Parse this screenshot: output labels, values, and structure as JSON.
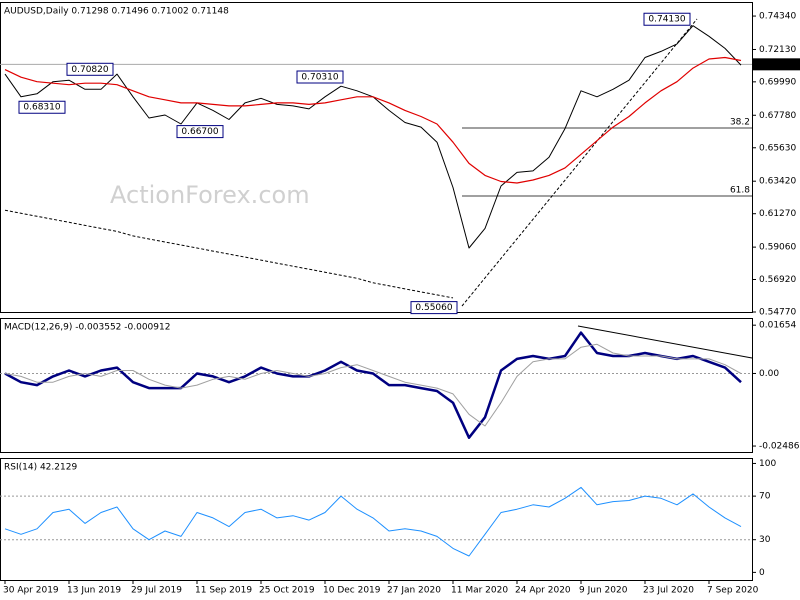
{
  "watermark": "ActionForex.com",
  "chart_data": [
    {
      "type": "line",
      "title": "AUDUSD,Daily  0.71298 0.71496 0.71002 0.71148",
      "ylim": [
        0.5477,
        0.7527
      ],
      "yticks": [
        {
          "value": 0.7434,
          "label": "0.74340"
        },
        {
          "value": 0.7213,
          "label": "0.72130"
        },
        {
          "value": 0.6999,
          "label": "0.69990"
        },
        {
          "value": 0.6778,
          "label": "0.67780"
        },
        {
          "value": 0.6563,
          "label": "0.65630"
        },
        {
          "value": 0.6342,
          "label": "0.63420"
        },
        {
          "value": 0.6127,
          "label": "0.61270"
        },
        {
          "value": 0.5906,
          "label": "0.59060"
        },
        {
          "value": 0.5692,
          "label": "0.56920"
        },
        {
          "value": 0.5477,
          "label": "0.54770"
        }
      ],
      "series": [
        {
          "color": "#000000",
          "line_width": 1,
          "values": [
            0.705,
            0.69,
            0.692,
            0.7,
            0.701,
            0.695,
            0.695,
            0.705,
            0.69,
            0.676,
            0.678,
            0.672,
            0.686,
            0.681,
            0.675,
            0.686,
            0.689,
            0.685,
            0.684,
            0.682,
            0.69,
            0.697,
            0.694,
            0.69,
            0.681,
            0.673,
            0.67,
            0.66,
            0.63,
            0.59,
            0.603,
            0.631,
            0.64,
            0.641,
            0.65,
            0.669,
            0.694,
            0.69,
            0.695,
            0.701,
            0.716,
            0.72,
            0.725,
            0.737,
            0.73,
            0.722,
            0.711
          ]
        },
        {
          "color": "#e00000",
          "line_width": 1.2,
          "values": [
            0.708,
            0.703,
            0.7,
            0.699,
            0.698,
            0.699,
            0.699,
            0.698,
            0.694,
            0.69,
            0.688,
            0.686,
            0.686,
            0.685,
            0.684,
            0.684,
            0.685,
            0.686,
            0.686,
            0.685,
            0.686,
            0.688,
            0.69,
            0.69,
            0.686,
            0.681,
            0.677,
            0.672,
            0.66,
            0.646,
            0.638,
            0.634,
            0.633,
            0.635,
            0.638,
            0.643,
            0.652,
            0.661,
            0.67,
            0.677,
            0.686,
            0.694,
            0.7,
            0.709,
            0.715,
            0.716,
            0.714
          ]
        },
        {
          "color": "#000000",
          "line_width": 1,
          "dashed": true,
          "values": [
            0.615,
            0.613,
            0.611,
            0.609,
            0.607,
            0.605,
            0.603,
            0.601,
            0.598,
            0.596,
            0.594,
            0.592,
            0.59,
            0.588,
            0.586,
            0.584,
            0.582,
            0.58,
            0.578,
            0.576,
            0.574,
            0.572,
            0.57,
            0.567,
            0.565,
            0.563,
            0.561,
            0.559,
            0.557,
            null,
            null,
            null,
            null,
            null,
            null,
            null,
            null,
            null,
            null,
            null,
            null,
            null,
            null,
            null,
            null,
            null,
            null
          ]
        }
      ],
      "levels": [
        {
          "value": 0.6694,
          "label": "38.2"
        },
        {
          "value": 0.6244,
          "label": "61.8"
        }
      ],
      "last_price": {
        "value": 0.71148,
        "label": "0.71148"
      },
      "annotations": [
        {
          "value": 0.7082,
          "label": "0.70820"
        },
        {
          "value": 0.6831,
          "label": "0.68310"
        },
        {
          "value": 0.667,
          "label": "0.66700"
        },
        {
          "value": 0.7031,
          "label": "0.70310"
        },
        {
          "value": 0.7413,
          "label": "0.74130"
        },
        {
          "value": 0.5506,
          "label": "0.55060"
        }
      ]
    },
    {
      "type": "line",
      "title": "MACD(12,26,9) -0.003552 -0.000912",
      "ylim": [
        -0.0269,
        0.019
      ],
      "yticks": [
        0.01654,
        {
          "value": 0,
          "label": "0.00"
        },
        -0.02486
      ],
      "series": [
        {
          "color": "#000080",
          "line_width": 2.5,
          "values": [
            0.0,
            -0.003,
            -0.004,
            -0.001,
            0.001,
            -0.001,
            0.001,
            0.002,
            -0.003,
            -0.005,
            -0.005,
            -0.005,
            0.0,
            -0.001,
            -0.003,
            -0.001,
            0.002,
            0.0,
            -0.001,
            -0.001,
            0.001,
            0.004,
            0.001,
            0.0,
            -0.004,
            -0.004,
            -0.005,
            -0.006,
            -0.01,
            -0.022,
            -0.015,
            0.001,
            0.005,
            0.006,
            0.005,
            0.006,
            0.014,
            0.007,
            0.006,
            0.006,
            0.007,
            0.006,
            0.005,
            0.006,
            0.004,
            0.002,
            -0.003
          ]
        },
        {
          "color": "#a0a0a0",
          "line_width": 1,
          "values": [
            0.0,
            -0.001,
            -0.003,
            -0.003,
            -0.001,
            0.0,
            -0.001,
            0.001,
            0.001,
            -0.002,
            -0.004,
            -0.005,
            -0.004,
            -0.002,
            -0.001,
            -0.002,
            0.0,
            0.001,
            0.0,
            -0.001,
            0.0,
            0.002,
            0.003,
            0.001,
            -0.001,
            -0.003,
            -0.004,
            -0.005,
            -0.007,
            -0.014,
            -0.018,
            -0.01,
            -0.001,
            0.004,
            0.005,
            0.005,
            0.009,
            0.01,
            0.007,
            0.006,
            0.006,
            0.006,
            0.005,
            0.005,
            0.005,
            0.003,
            0.0
          ]
        }
      ],
      "levels": [
        {
          "value": 0
        }
      ]
    },
    {
      "type": "line",
      "title": "RSI(14) 42.2129",
      "ylim": [
        -7,
        105
      ],
      "yticks": [
        100,
        70,
        30,
        0
      ],
      "categories": [
        "30 Apr 2019",
        null,
        null,
        null,
        "13 Jun 2019",
        null,
        null,
        null,
        "29 Jul 2019",
        null,
        null,
        null,
        "11 Sep 2019",
        null,
        null,
        null,
        "25 Oct 2019",
        null,
        null,
        null,
        "10 Dec 2019",
        null,
        null,
        null,
        "27 Jan 2020",
        null,
        null,
        null,
        "11 Mar 2020",
        null,
        null,
        null,
        "24 Apr 2020",
        null,
        null,
        null,
        "9 Jun 2020",
        null,
        null,
        null,
        "23 Jul 2020",
        null,
        null,
        null,
        "7 Sep 2020",
        null,
        null
      ],
      "series": [
        {
          "color": "#1e90ff",
          "line_width": 1,
          "values": [
            40,
            35,
            40,
            55,
            58,
            45,
            55,
            60,
            40,
            30,
            38,
            33,
            55,
            50,
            42,
            55,
            58,
            50,
            52,
            48,
            55,
            70,
            58,
            50,
            38,
            40,
            38,
            33,
            22,
            15,
            35,
            55,
            58,
            62,
            60,
            68,
            78,
            62,
            65,
            66,
            70,
            68,
            62,
            72,
            60,
            50,
            42
          ]
        }
      ],
      "levels": [
        {
          "value": 70
        },
        {
          "value": 30
        }
      ]
    }
  ]
}
